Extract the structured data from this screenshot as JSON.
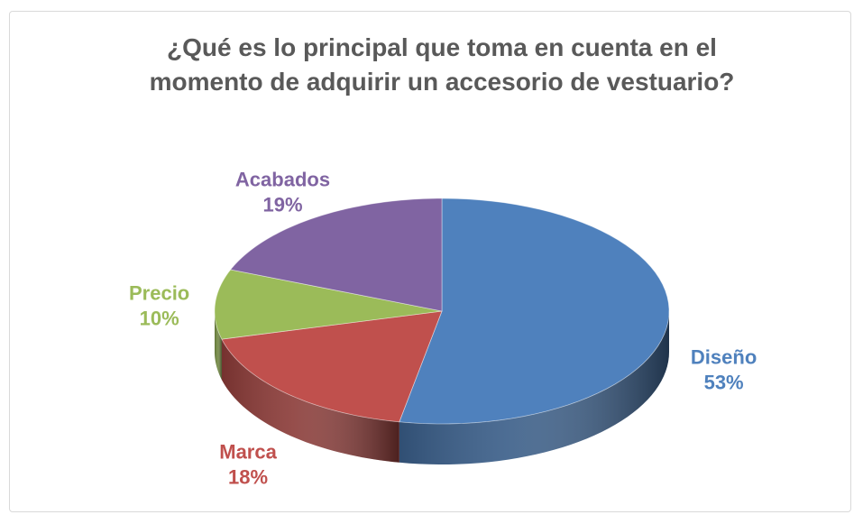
{
  "chart_data": {
    "type": "pie3d",
    "title": "¿Qué es lo principal que toma en cuenta en el momento de adquirir un accesorio de vestuario?",
    "categories": [
      "Diseño",
      "Marca",
      "Precio",
      "Acabados"
    ],
    "values": [
      53,
      18,
      10,
      19
    ],
    "value_labels": [
      "53%",
      "18%",
      "10%",
      "19%"
    ],
    "colors": [
      "#4f81bd",
      "#c0504d",
      "#9bbb59",
      "#8064a2"
    ]
  }
}
